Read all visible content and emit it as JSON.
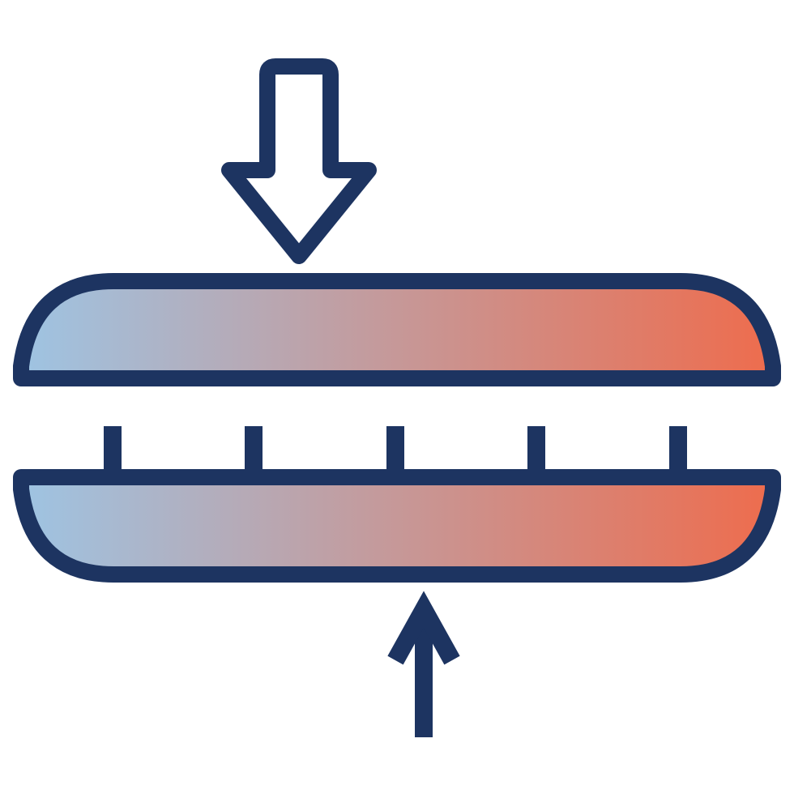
{
  "icon": {
    "name": "heat-press-icon",
    "colors": {
      "outline": "#1d3461",
      "gradient_start": "#9ec4e3",
      "gradient_end": "#ee6c4d",
      "background": "#ffffff"
    },
    "elements": [
      "down-arrow-icon",
      "upper-plate",
      "tick-marks",
      "lower-plate",
      "up-arrow-icon"
    ]
  }
}
